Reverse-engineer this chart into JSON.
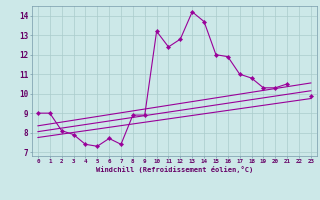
{
  "x": [
    0,
    1,
    2,
    3,
    4,
    5,
    6,
    7,
    8,
    9,
    10,
    11,
    12,
    13,
    14,
    15,
    16,
    17,
    18,
    19,
    20,
    21,
    22,
    23
  ],
  "line1_y": [
    9.0,
    9.0,
    8.1,
    7.9,
    7.4,
    7.3,
    7.7,
    7.4,
    8.9,
    8.9,
    13.2,
    12.4,
    12.8,
    14.2,
    13.7,
    12.0,
    11.9,
    11.0,
    10.8,
    10.3,
    10.3,
    10.5,
    null,
    9.9
  ],
  "line_color": "#990099",
  "bg_color": "#cce8e8",
  "grid_color": "#aacccc",
  "xlabel": "Windchill (Refroidissement éolien,°C)",
  "tick_color": "#660066",
  "xlim": [
    -0.5,
    23.5
  ],
  "ylim": [
    6.8,
    14.5
  ],
  "yticks": [
    7,
    8,
    9,
    10,
    11,
    12,
    13,
    14
  ],
  "trend_lines": [
    [
      8.35,
      10.55
    ],
    [
      8.05,
      10.15
    ],
    [
      7.75,
      9.75
    ]
  ]
}
